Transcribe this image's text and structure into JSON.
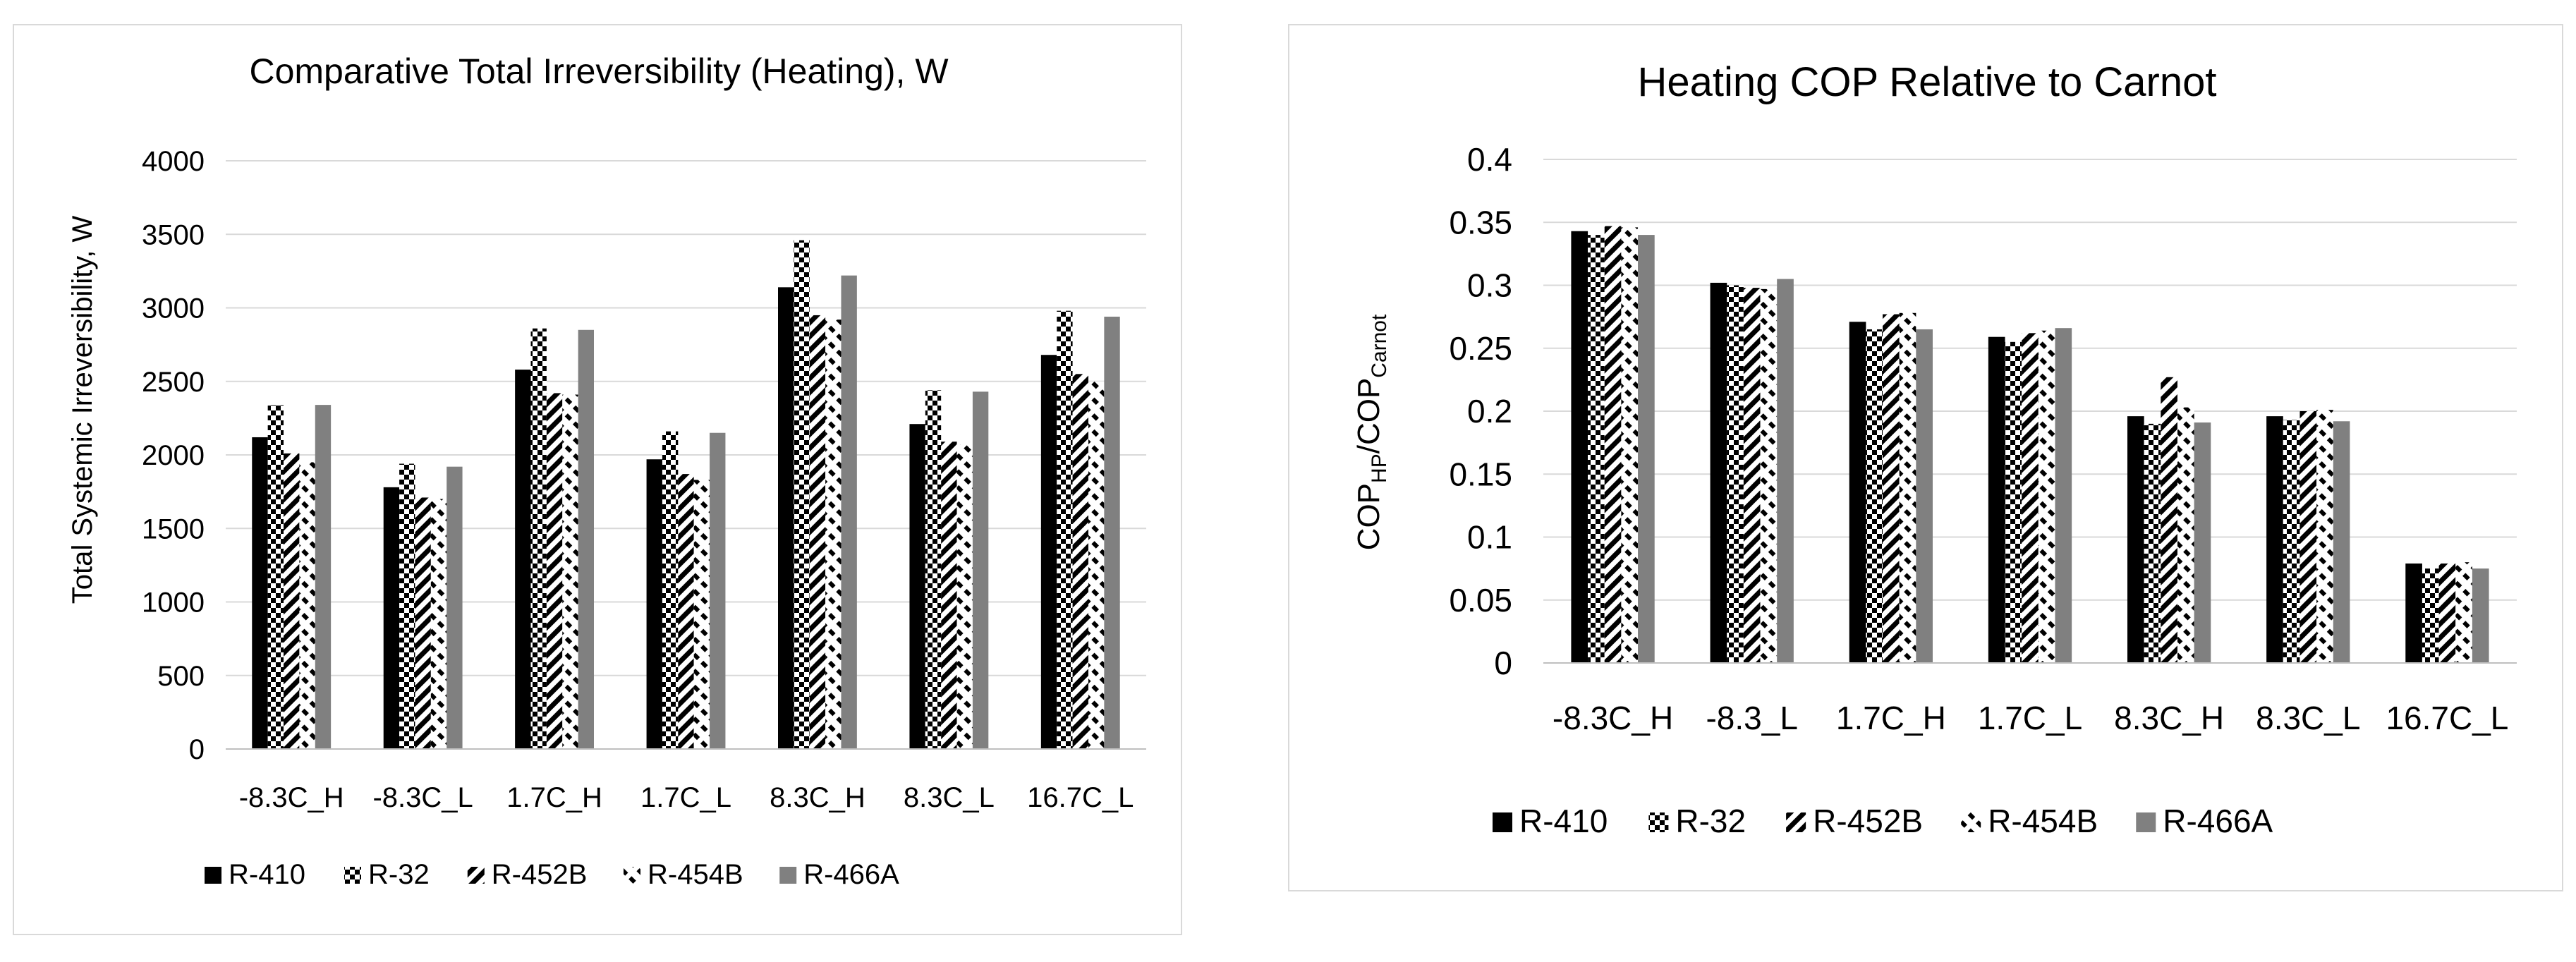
{
  "chart_data": [
    {
      "type": "bar",
      "title": "Comparative Total Irreversibility (Heating), W",
      "xlabel": "",
      "ylabel": "Total Systemic Irreversibility, W",
      "ylim": [
        0,
        4000
      ],
      "yticks": [
        "0",
        "500",
        "1000",
        "1500",
        "2000",
        "2500",
        "3000",
        "3500",
        "4000"
      ],
      "grid": true,
      "legend_position": "bottom",
      "categories": [
        "-8.3C_H",
        "-8.3C_L",
        "1.7C_H",
        "1.7C_L",
        "8.3C_H",
        "8.3C_L",
        "16.7C_L"
      ],
      "series": [
        {
          "name": "R-410",
          "pattern": "solid-black",
          "values": [
            2120,
            1780,
            2580,
            1970,
            3140,
            2210,
            2680
          ]
        },
        {
          "name": "R-32",
          "pattern": "checker",
          "values": [
            2340,
            1940,
            2860,
            2160,
            3460,
            2440,
            2980
          ]
        },
        {
          "name": "R-452B",
          "pattern": "diag-wide",
          "values": [
            2010,
            1710,
            2420,
            1870,
            2950,
            2090,
            2550
          ]
        },
        {
          "name": "R-454B",
          "pattern": "diag-dash",
          "values": [
            1950,
            1700,
            2410,
            1830,
            2920,
            2070,
            2500
          ]
        },
        {
          "name": "R-466A",
          "pattern": "solid-gray",
          "values": [
            2340,
            1920,
            2850,
            2150,
            3220,
            2430,
            2940
          ]
        }
      ]
    },
    {
      "type": "bar",
      "title": "Heating COP Relative to Carnot",
      "xlabel": "",
      "ylabel": {
        "main": "COP",
        "sub1": "HP",
        "mid": "/COP",
        "sub2": "Carnot"
      },
      "ylim": [
        0,
        0.4
      ],
      "yticks": [
        "0",
        "0.05",
        "0.1",
        "0.15",
        "0.2",
        "0.25",
        "0.3",
        "0.35",
        "0.4"
      ],
      "grid": true,
      "legend_position": "bottom",
      "categories": [
        "-8.3C_H",
        "-8.3_L",
        "1.7C_H",
        "1.7C_L",
        "8.3C_H",
        "8.3C_L",
        "16.7C_L"
      ],
      "series": [
        {
          "name": "R-410",
          "pattern": "solid-black",
          "values": [
            0.343,
            0.302,
            0.271,
            0.259,
            0.196,
            0.196,
            0.079
          ]
        },
        {
          "name": "R-32",
          "pattern": "checker",
          "values": [
            0.34,
            0.3,
            0.265,
            0.255,
            0.19,
            0.193,
            0.075
          ]
        },
        {
          "name": "R-452B",
          "pattern": "diag-wide",
          "values": [
            0.347,
            0.298,
            0.277,
            0.262,
            0.227,
            0.2,
            0.079
          ]
        },
        {
          "name": "R-454B",
          "pattern": "diag-dash",
          "values": [
            0.346,
            0.297,
            0.278,
            0.264,
            0.203,
            0.201,
            0.08
          ]
        },
        {
          "name": "R-466A",
          "pattern": "solid-gray",
          "values": [
            0.34,
            0.305,
            0.265,
            0.266,
            0.191,
            0.192,
            0.075
          ]
        }
      ]
    }
  ]
}
